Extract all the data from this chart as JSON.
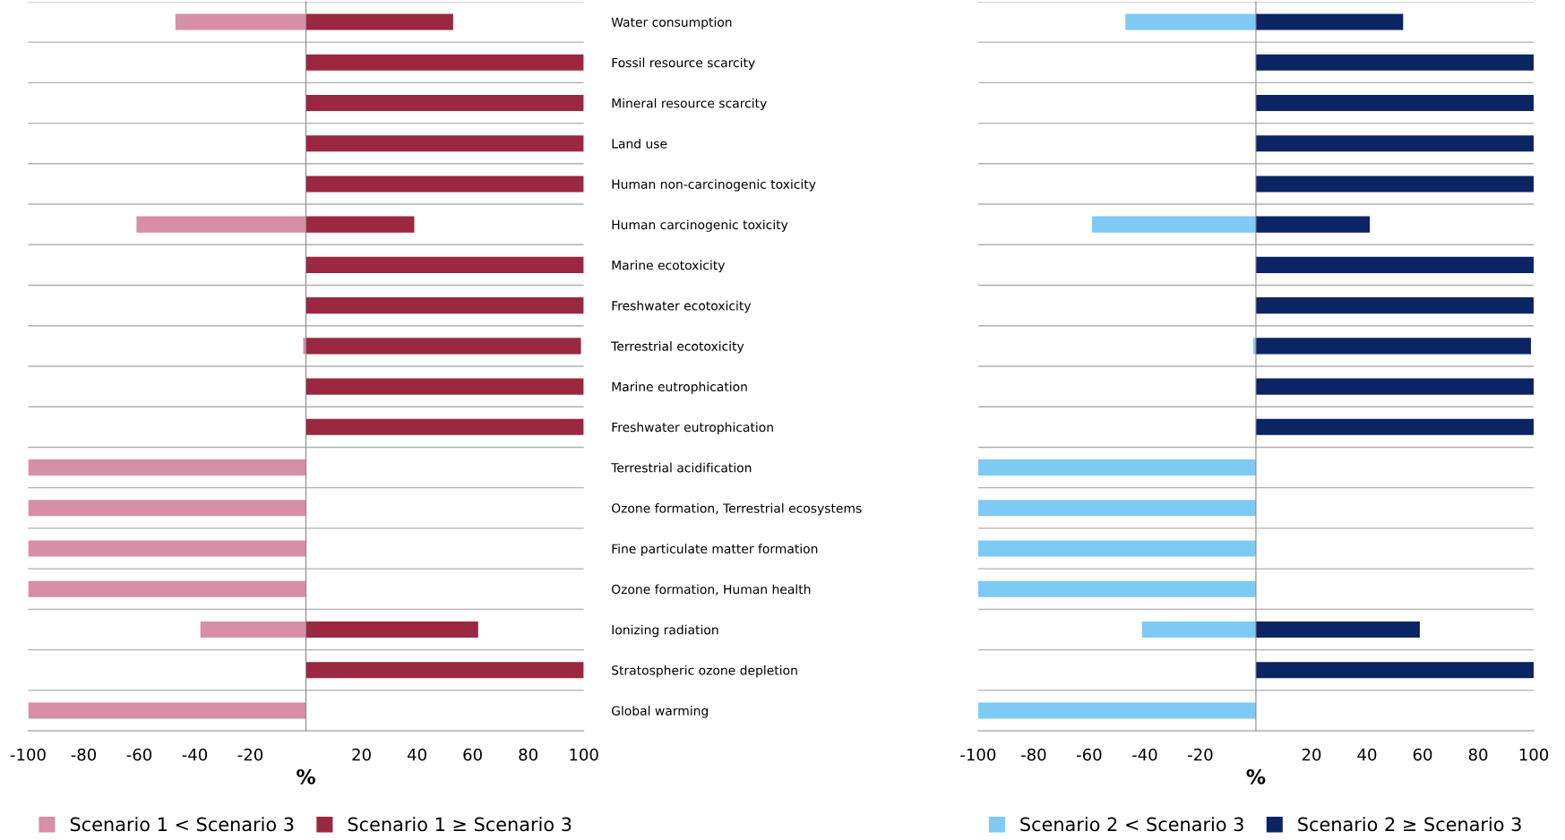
{
  "chart_data": [
    {
      "type": "bar",
      "orientation": "horizontal",
      "xlabel": "%",
      "legend": "bottom",
      "grid": "y",
      "tick_labels": "xy",
      "categories": [
        "Water consumption",
        "Fossil resource scarcity",
        "Mineral resource scarcity",
        "Land use",
        "Human non-carcinogenic toxicity",
        "Human carcinogenic toxicity",
        "Marine ecotoxicity",
        "Freshwater ecotoxicity",
        "Terrestrial ecotoxicity",
        "Marine eutrophication",
        "Freshwater eutrophication",
        "Terrestrial acidification",
        "Ozone formation, Terrestrial ecosystems",
        "Fine particulate matter formation",
        "Ozone formation, Human health",
        "Ionizing radiation",
        "Stratospheric ozone depletion",
        "Global warming"
      ],
      "xlim": [
        -100,
        100
      ],
      "xticks": [
        -100,
        -80,
        -60,
        -40,
        -20,
        20,
        40,
        60,
        80,
        100
      ],
      "series": [
        {
          "name": "Scenario 1 < Scenario 3",
          "color": "#d68fa6",
          "values": [
            -47,
            0,
            0,
            0,
            0,
            -61,
            0,
            0,
            -1,
            0,
            0,
            -100,
            -100,
            -100,
            -100,
            -38,
            0,
            -100
          ]
        },
        {
          "name": "Scenario 1 ≥ Scenario 3",
          "color": "#9b2740",
          "values": [
            53,
            100,
            100,
            100,
            100,
            39,
            100,
            100,
            99,
            100,
            100,
            0,
            0,
            0,
            0,
            62,
            100,
            0
          ]
        }
      ]
    },
    {
      "type": "bar",
      "orientation": "horizontal",
      "xlabel": "%",
      "legend": "bottom",
      "grid": "y",
      "tick_labels": "x",
      "categories": [
        null,
        null,
        null,
        null,
        null,
        null,
        null,
        null,
        null,
        null,
        null,
        null,
        null,
        null,
        null,
        null,
        null,
        null
      ],
      "xlim": [
        -100,
        100
      ],
      "xticks": [
        -100,
        -80,
        -60,
        -40,
        -20,
        20,
        40,
        60,
        80,
        100
      ],
      "series": [
        {
          "name": "Scenario 2 < Scenario 3",
          "color": "#7fcaf5",
          "values": [
            -47,
            0,
            0,
            0,
            0,
            -59,
            0,
            0,
            -1,
            0,
            0,
            -100,
            -100,
            -100,
            -100,
            -41,
            0,
            -100
          ]
        },
        {
          "name": "Scenario 2 ≥ Scenario 3",
          "color": "#0b2463",
          "values": [
            53,
            100,
            100,
            100,
            100,
            41,
            100,
            100,
            99,
            100,
            100,
            0,
            0,
            0,
            0,
            59,
            100,
            0
          ]
        }
      ]
    }
  ]
}
